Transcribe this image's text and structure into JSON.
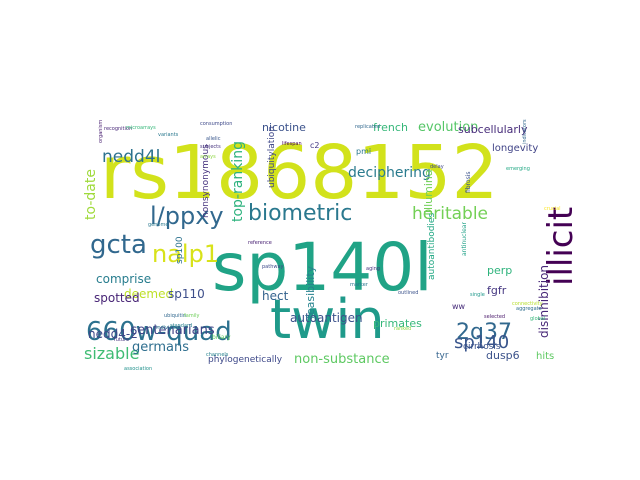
{
  "wordcloud": {
    "words": [
      {
        "text": "rs1868152",
        "color": "#d2e21b"
      },
      {
        "text": "sp140l",
        "color": "#20a386"
      },
      {
        "text": "twin",
        "color": "#1f9a8a"
      },
      {
        "text": "illicit",
        "color": "#440154"
      },
      {
        "text": "660w-quad",
        "color": "#2c718e"
      },
      {
        "text": "l/ppxy",
        "color": "#31688e"
      },
      {
        "text": "biometric",
        "color": "#2a788e"
      },
      {
        "text": "gcta",
        "color": "#31688e"
      },
      {
        "text": "nalp1",
        "color": "#d8e219"
      },
      {
        "text": "heritable",
        "color": "#73d055"
      },
      {
        "text": "nedd4l",
        "color": "#2c728e"
      },
      {
        "text": "to-date",
        "color": "#9fda3a"
      },
      {
        "text": "2q37",
        "color": "#31688e"
      },
      {
        "text": "sp140",
        "color": "#39558c"
      },
      {
        "text": "top-ranking",
        "color": "#2db27d"
      },
      {
        "text": "sizable",
        "color": "#3fbc73"
      },
      {
        "text": "centenarians",
        "color": "#404387"
      },
      {
        "text": "germans",
        "color": "#2e6e8e"
      },
      {
        "text": "non-substance",
        "color": "#5ec962"
      },
      {
        "text": "nedd4-2",
        "color": "#3e4989"
      },
      {
        "text": "disinhibition",
        "color": "#482878"
      },
      {
        "text": "autoantigen",
        "color": "#3b518b"
      },
      {
        "text": "deciphering",
        "color": "#2a7b8e"
      },
      {
        "text": "evolution",
        "color": "#55c667"
      },
      {
        "text": "french",
        "color": "#35b779"
      },
      {
        "text": "subcellularly",
        "color": "#472c7a"
      },
      {
        "text": "longevity",
        "color": "#414487"
      },
      {
        "text": "nicotine",
        "color": "#3b528b"
      },
      {
        "text": "illumina",
        "color": "#70cf57"
      },
      {
        "text": "deemed",
        "color": "#bddf26"
      },
      {
        "text": "sp110",
        "color": "#3d4e8a"
      },
      {
        "text": "comprise",
        "color": "#287d8e"
      },
      {
        "text": "spotted",
        "color": "#482576"
      },
      {
        "text": "hect",
        "color": "#33628d"
      },
      {
        "text": "primates",
        "color": "#35b779"
      },
      {
        "text": "perp",
        "color": "#2eb37c"
      },
      {
        "text": "fgfr",
        "color": "#453781"
      },
      {
        "text": "dusp6",
        "color": "#3b528b"
      },
      {
        "text": "hits",
        "color": "#5ec962"
      },
      {
        "text": "cirrhosis",
        "color": "#3b528b"
      },
      {
        "text": "tyr",
        "color": "#33638d"
      },
      {
        "text": "phylogenetically",
        "color": "#3e4989"
      },
      {
        "text": "feasibility",
        "color": "#26828e"
      },
      {
        "text": "nonsynonymous",
        "color": "#46337e"
      },
      {
        "text": "ubiquitylation",
        "color": "#3f4788"
      },
      {
        "text": "autoantibodies",
        "color": "#22a884"
      },
      {
        "text": "sp100",
        "color": "#2c728e"
      },
      {
        "text": "c2",
        "color": "#443983"
      },
      {
        "text": "pmi",
        "color": "#2a788e"
      },
      {
        "text": "ww",
        "color": "#472c7a"
      },
      {
        "text": "biliary",
        "color": "#5ec962"
      },
      {
        "text": "antinuclear",
        "color": "#1fa187"
      },
      {
        "text": "crucial",
        "color": "#fde725"
      },
      {
        "text": "fibrosis",
        "color": "#3b528b"
      },
      {
        "text": "replicated",
        "color": "#31688e"
      },
      {
        "text": "subjects",
        "color": "#46337e"
      },
      {
        "text": "arrays",
        "color": "#8fd744"
      },
      {
        "text": "allelic",
        "color": "#39568c"
      },
      {
        "text": "variants",
        "color": "#2a788e"
      },
      {
        "text": "recognition",
        "color": "#482878"
      },
      {
        "text": "consumption",
        "color": "#3e4989"
      },
      {
        "text": "microarrays",
        "color": "#35b779"
      },
      {
        "text": "organism",
        "color": "#481f71"
      },
      {
        "text": "individual",
        "color": "#2a788e"
      },
      {
        "text": "emerging",
        "color": "#22a884"
      },
      {
        "text": "indicators",
        "color": "#31688e"
      },
      {
        "text": "connectivity",
        "color": "#b5de2b"
      },
      {
        "text": "lifespan",
        "color": "#440154"
      },
      {
        "text": "aging",
        "color": "#46327e"
      },
      {
        "text": "pathway",
        "color": "#3e4a89"
      },
      {
        "text": "ubiquitin",
        "color": "#31688e"
      },
      {
        "text": "family",
        "color": "#6ece58"
      },
      {
        "text": "standard",
        "color": "#27808e"
      },
      {
        "text": "reference",
        "color": "#482173"
      },
      {
        "text": "marker",
        "color": "#2a788e"
      },
      {
        "text": "delay",
        "color": "#3f4788"
      },
      {
        "text": "global",
        "color": "#35b779"
      },
      {
        "text": "single",
        "color": "#1f988b"
      },
      {
        "text": "aggregate",
        "color": "#2e6e8e"
      },
      {
        "text": "selected",
        "color": "#481769"
      },
      {
        "text": "ranked",
        "color": "#8fd744"
      },
      {
        "text": "outlined",
        "color": "#3b528b"
      },
      {
        "text": "channels",
        "color": "#26828e"
      },
      {
        "text": "future",
        "color": "#46337e"
      },
      {
        "text": "genome",
        "color": "#2a788e"
      },
      {
        "text": "association",
        "color": "#21918c"
      }
    ]
  }
}
